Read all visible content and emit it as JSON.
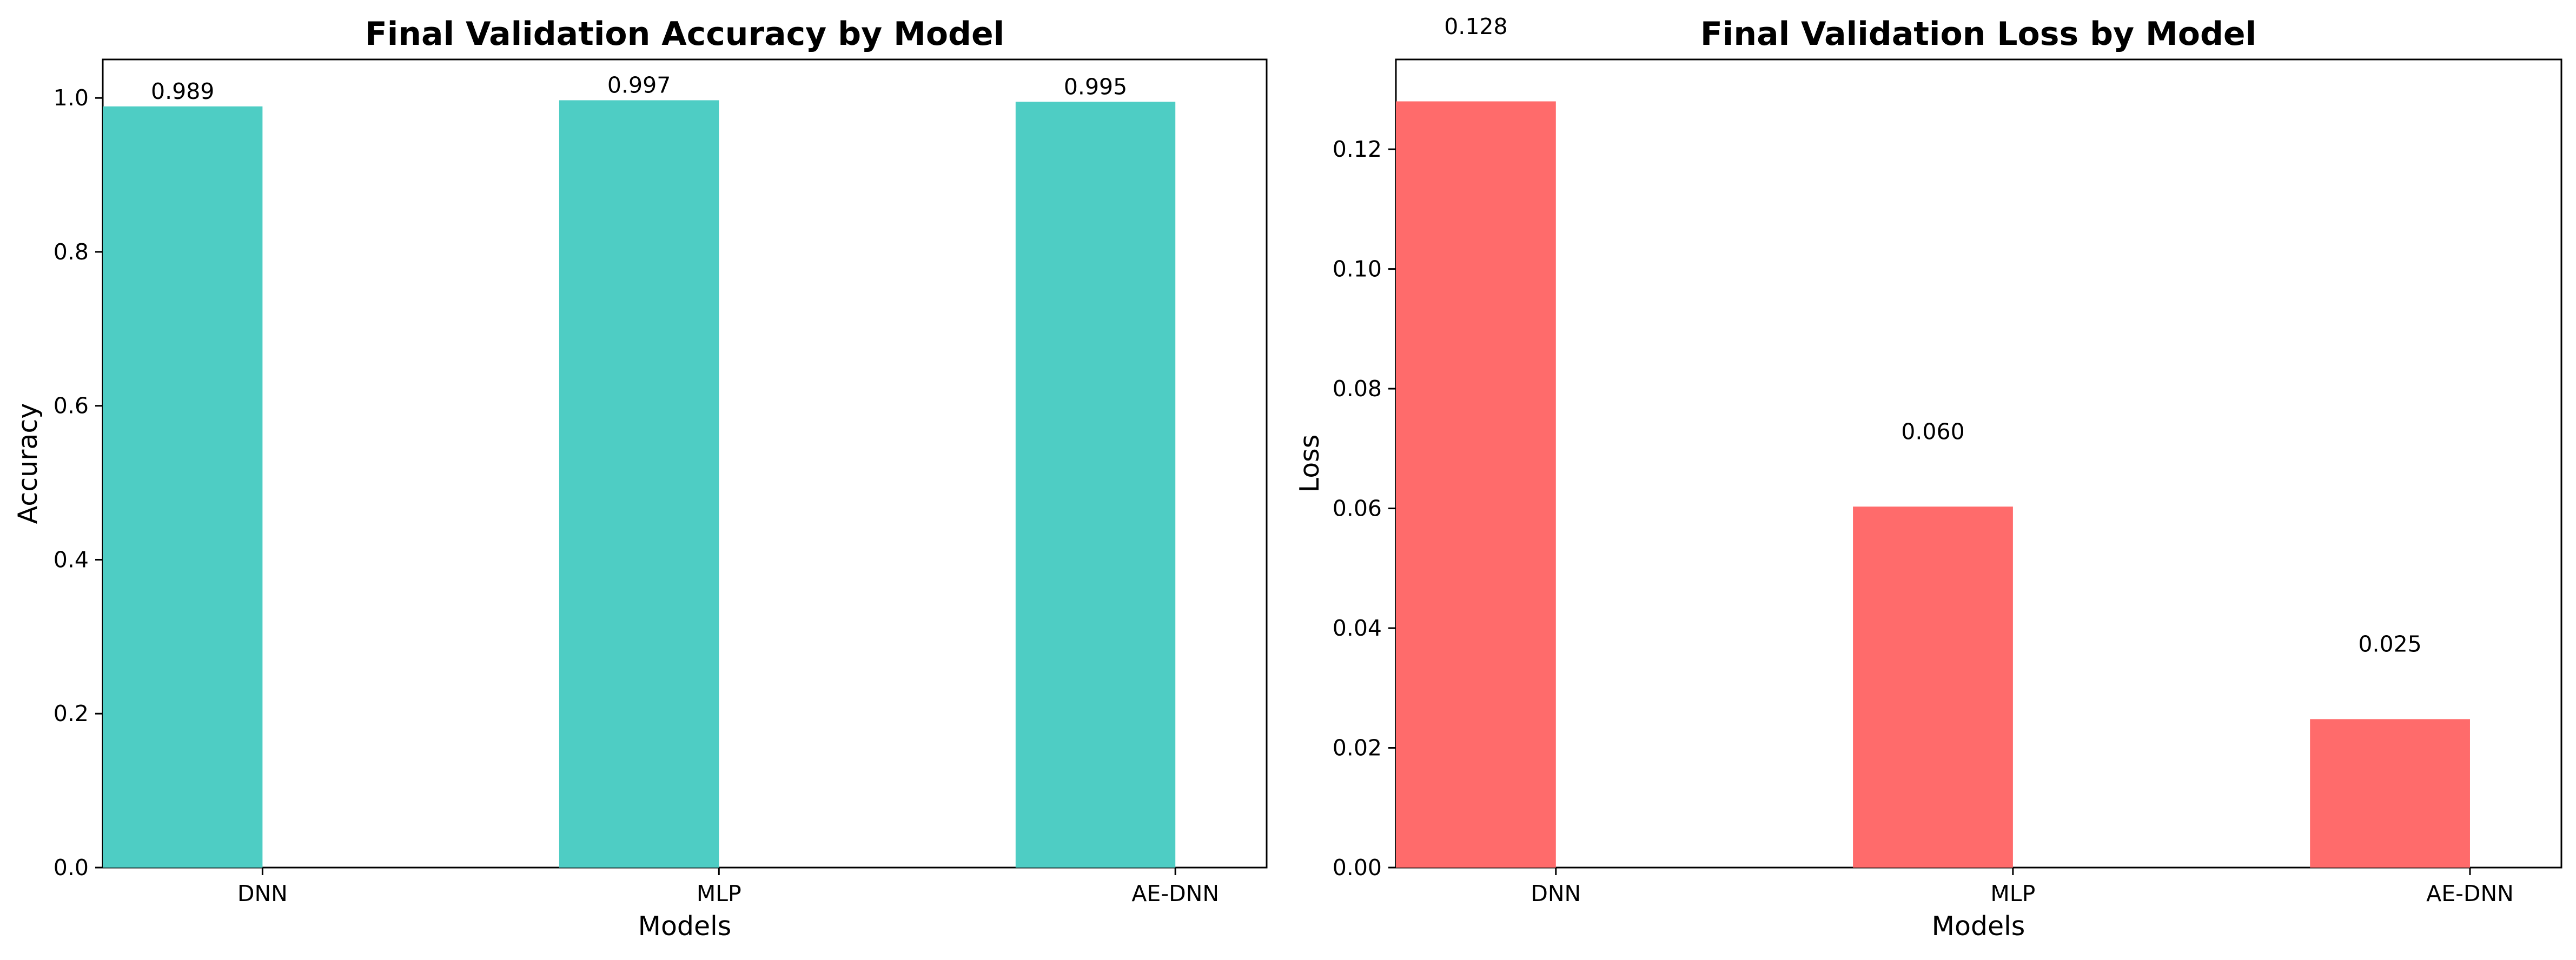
{
  "chart_data": [
    {
      "type": "bar",
      "title": "Final Validation Accuracy by Model",
      "xlabel": "Models",
      "ylabel": "Accuracy",
      "categories": [
        "DNN",
        "MLP",
        "AE-DNN"
      ],
      "values": [
        0.989,
        0.997,
        0.995
      ],
      "data_labels": [
        "0.989",
        "0.997",
        "0.995"
      ],
      "ylim": [
        0,
        1.05
      ],
      "yticks": [
        0.0,
        0.2,
        0.4,
        0.6,
        0.8,
        1.0
      ],
      "ytick_labels": [
        "0.0",
        "0.2",
        "0.4",
        "0.6",
        "0.8",
        "1.0"
      ],
      "bar_color": "#4ECDC4",
      "grid": false
    },
    {
      "type": "bar",
      "title": "Final Validation Loss by Model",
      "xlabel": "Models",
      "ylabel": "Loss",
      "categories": [
        "DNN",
        "MLP",
        "AE-DNN"
      ],
      "values": [
        0.128,
        0.0603,
        0.0248
      ],
      "data_labels": [
        "0.128",
        "0.060",
        "0.025"
      ],
      "label_offset": 0.01,
      "ylim": [
        0,
        0.135
      ],
      "yticks": [
        0.0,
        0.02,
        0.04,
        0.06,
        0.08,
        0.1,
        0.12
      ],
      "ytick_labels": [
        "0.00",
        "0.02",
        "0.04",
        "0.06",
        "0.08",
        "0.10",
        "0.12"
      ],
      "bar_color": "#FF6B6B",
      "grid": false
    }
  ]
}
